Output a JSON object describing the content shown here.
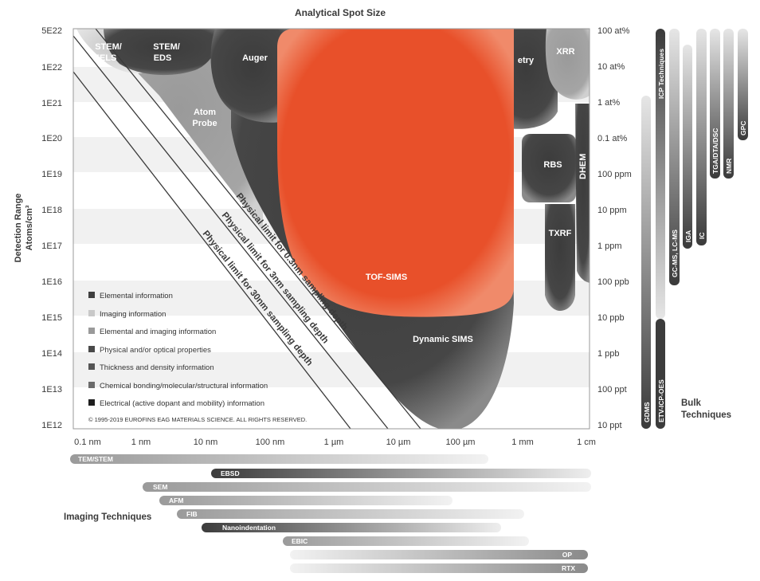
{
  "diagram": {
    "title": "Analytical Spot Size",
    "left_axis_title_line1": "Detection Range",
    "left_axis_title_line2": "Atoms/cm³",
    "left_ticks": [
      "5E22",
      "1E22",
      "1E21",
      "1E20",
      "1E19",
      "1E18",
      "1E17",
      "1E16",
      "1E15",
      "1E14",
      "1E13",
      "1E12"
    ],
    "right_ticks": [
      "100 at%",
      "10 at%",
      "1 at%",
      "0.1 at%",
      "100 ppm",
      "10 ppm",
      "1 ppm",
      "100 ppb",
      "10 ppb",
      "1 ppb",
      "100 ppt",
      "10 ppt"
    ],
    "bottom_ticks": [
      "0.1 nm",
      "1 nm",
      "10 nm",
      "100 nm",
      "1 µm",
      "10 µm",
      "100 µm",
      "1 mm",
      "1 cm"
    ],
    "regions": {
      "stem_eels_line1": "STEM/",
      "stem_eels_line2": "EELS",
      "stem_eds_line1": "STEM/",
      "stem_eds_line2": "EDS",
      "auger": "Auger",
      "atom_probe_line1": "Atom",
      "atom_probe_line2": "Probe",
      "tof_sims": "TOF-SIMS",
      "dynamic_sims": "Dynamic SIMS",
      "xrr": "XRR",
      "etry": "etry",
      "rbs": "RBS",
      "txrf": "TXRF",
      "dhem": "DHEM"
    },
    "limits": [
      "Physical limit for 0.3nm sampling depth",
      "Physical limit for 3nm sampling depth",
      "Physical limit for 30nm sampling depth"
    ],
    "legend": [
      {
        "label": "Elemental information",
        "color": "#3f3f3f"
      },
      {
        "label": "Imaging information",
        "color": "#c8c8c8"
      },
      {
        "label": "Elemental and imaging information",
        "color": "#9a9a9a"
      },
      {
        "label": "Physical and/or optical properties",
        "color": "#4a4a4a"
      },
      {
        "label": "Thickness and density information",
        "color": "#555555"
      },
      {
        "label": "Chemical bonding/molecular/structural information",
        "color": "#6b6b6b"
      },
      {
        "label": "Electrical (active dopant and mobility) information",
        "color": "#1e1e1e"
      }
    ],
    "copyright": "© 1995-2019 EUROFINS EAG MATERIALS SCIENCE. ALL RIGHTS RESERVED.",
    "bulk_title_line1": "Bulk",
    "bulk_title_line2": "Techniques",
    "bulk_bars": [
      "GDMS",
      "ETV-ICP-OES",
      "ICP Techniques",
      "GC-MS, LC-MS",
      "IGA",
      "IC",
      "TGA/DTA/DSC",
      "NMR",
      "GPC"
    ],
    "imaging_title": "Imaging Techniques",
    "imaging_bars": [
      "TEM/STEM",
      "EBSD",
      "SEM",
      "AFM",
      "FIB",
      "Nanoindentation",
      "EBIC",
      "OP",
      "RTX"
    ]
  },
  "colors": {
    "accent": "#e8502a",
    "dark": "#3f3f3f",
    "text": "#3a3a3a"
  }
}
